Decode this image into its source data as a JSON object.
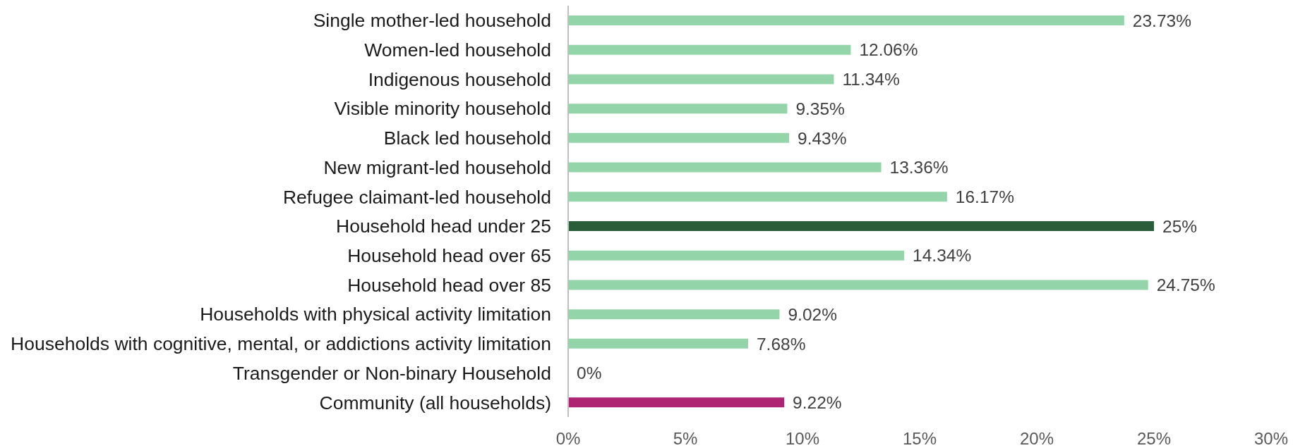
{
  "chart_data": {
    "type": "bar",
    "orientation": "horizontal",
    "categories": [
      "Single mother-led household",
      "Women-led household",
      "Indigenous household",
      "Visible minority household",
      "Black led household",
      "New migrant-led household",
      "Refugee claimant-led household",
      "Household head under 25",
      "Household head over 65",
      "Household head over 85",
      "Households with physical activity limitation",
      "Households with cognitive, mental, or addictions activity limitation",
      "Transgender or Non-binary Household",
      "Community (all households)"
    ],
    "values": [
      23.73,
      12.06,
      11.34,
      9.35,
      9.43,
      13.36,
      16.17,
      25,
      14.34,
      24.75,
      9.02,
      7.68,
      0,
      9.22
    ],
    "colors": [
      "#93d4a8",
      "#93d4a8",
      "#93d4a8",
      "#93d4a8",
      "#93d4a8",
      "#93d4a8",
      "#93d4a8",
      "#2a5e3b",
      "#93d4a8",
      "#93d4a8",
      "#93d4a8",
      "#93d4a8",
      "#93d4a8",
      "#ae2372"
    ],
    "value_labels": [
      "23.73%",
      "12.06%",
      "11.34%",
      "9.35%",
      "9.43%",
      "13.36%",
      "16.17%",
      "25%",
      "14.34%",
      "24.75%",
      "9.02%",
      "7.68%",
      "0%",
      "9.22%"
    ],
    "xlim": [
      0,
      30
    ],
    "xticks": [
      {
        "value": 0,
        "label": "0%"
      },
      {
        "value": 5,
        "label": "5%"
      },
      {
        "value": 10,
        "label": "10%"
      },
      {
        "value": 15,
        "label": "15%"
      },
      {
        "value": 20,
        "label": "20%"
      },
      {
        "value": 25,
        "label": "25%"
      },
      {
        "value": 30,
        "label": "30%"
      }
    ]
  }
}
